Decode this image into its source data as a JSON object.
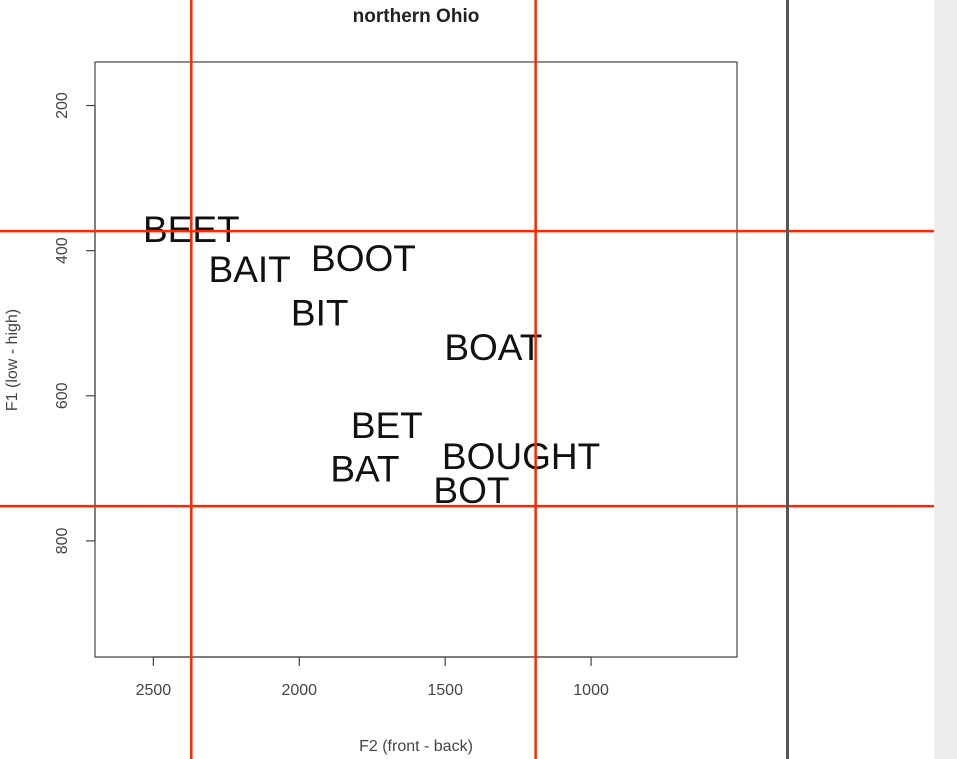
{
  "chart_data": {
    "type": "scatter",
    "title": "northern Ohio",
    "xlabel": "F2 (front - back)",
    "ylabel": "F1 (low - high)",
    "x_reversed": true,
    "y_reversed": true,
    "xlim": [
      2700,
      500
    ],
    "ylim": [
      140,
      960
    ],
    "x_ticks": [
      2500,
      2000,
      1500,
      1000
    ],
    "y_ticks": [
      200,
      400,
      600,
      800
    ],
    "grid": false,
    "points": [
      {
        "label": "BEET",
        "x": 2370,
        "y": 370
      },
      {
        "label": "BAIT",
        "x": 2170,
        "y": 425
      },
      {
        "label": "BOOT",
        "x": 1780,
        "y": 410
      },
      {
        "label": "BIT",
        "x": 1930,
        "y": 485
      },
      {
        "label": "BOAT",
        "x": 1335,
        "y": 533
      },
      {
        "label": "BET",
        "x": 1700,
        "y": 640
      },
      {
        "label": "BAT",
        "x": 1775,
        "y": 700
      },
      {
        "label": "BOUGHT",
        "x": 1240,
        "y": 683
      },
      {
        "label": "BOT",
        "x": 1410,
        "y": 730
      }
    ],
    "annotations": {
      "color": "#ff2600",
      "vertical_lines_x": [
        2370,
        1190
      ],
      "horizontal_lines_y": [
        373,
        752
      ]
    }
  }
}
